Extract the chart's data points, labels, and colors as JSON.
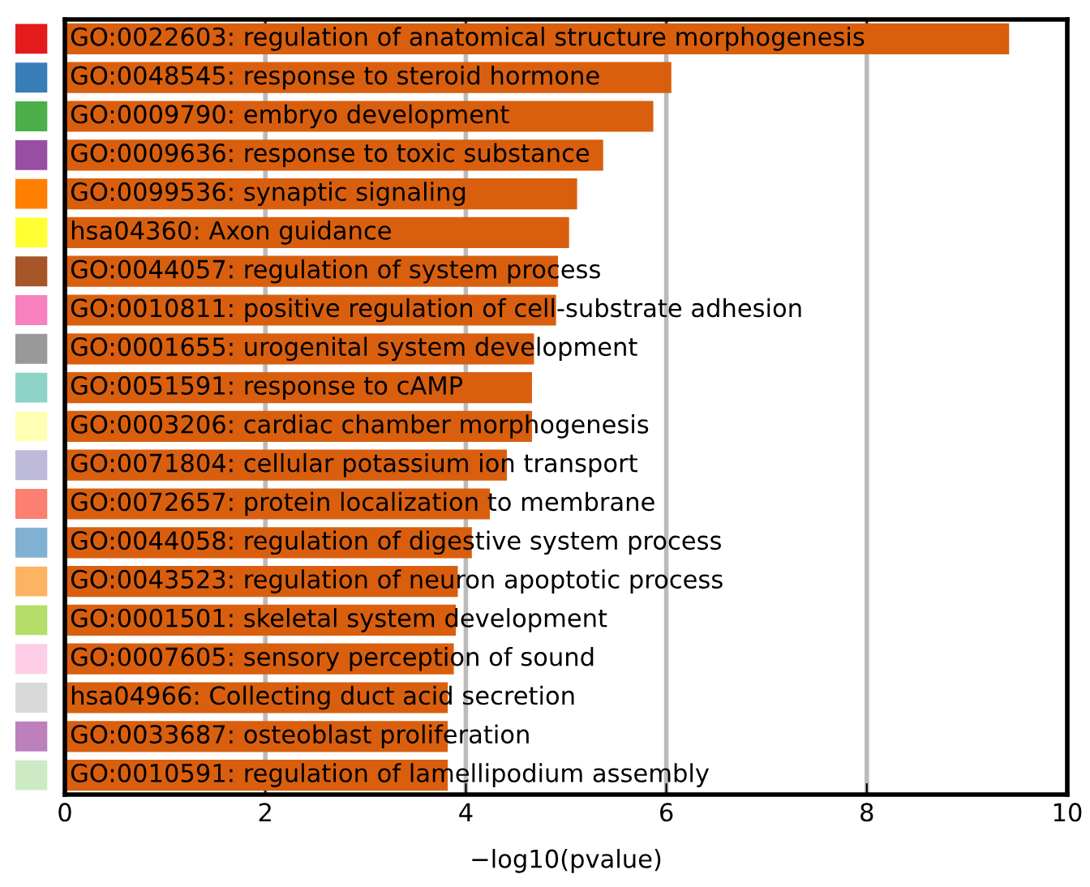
{
  "chart_data": {
    "type": "bar",
    "orientation": "horizontal",
    "xlabel": "−log10(pvalue)",
    "categories": [
      "GO:0022603: regulation of anatomical structure morphogenesis",
      "GO:0048545: response to steroid hormone",
      "GO:0009790: embryo development",
      "GO:0009636: response to toxic substance",
      "GO:0099536: synaptic signaling",
      "hsa04360: Axon guidance",
      "GO:0044057: regulation of system process",
      "GO:0010811: positive regulation of cell-substrate adhesion",
      "GO:0001655: urogenital system development",
      "GO:0051591: response to cAMP",
      "GO:0003206: cardiac chamber morphogenesis",
      "GO:0071804: cellular potassium ion transport",
      "GO:0072657: protein localization to membrane",
      "GO:0044058: regulation of digestive system process",
      "GO:0043523: regulation of neuron apoptotic process",
      "GO:0001501: skeletal system development",
      "GO:0007605: sensory perception of sound",
      "hsa04966: Collecting duct acid secretion",
      "GO:0033687: osteoblast proliferation",
      "GO:0010591: regulation of lamellipodium assembly"
    ],
    "values": [
      9.42,
      6.05,
      5.87,
      5.37,
      5.11,
      5.03,
      4.92,
      4.9,
      4.68,
      4.66,
      4.66,
      4.41,
      4.24,
      4.06,
      3.92,
      3.9,
      3.88,
      3.82,
      3.82,
      3.82
    ],
    "color": "#d95f0e",
    "xlim": [
      0,
      10
    ],
    "xticks": [
      0,
      2,
      4,
      6,
      8,
      10
    ],
    "grid": "x",
    "tick_labels": "x"
  }
}
